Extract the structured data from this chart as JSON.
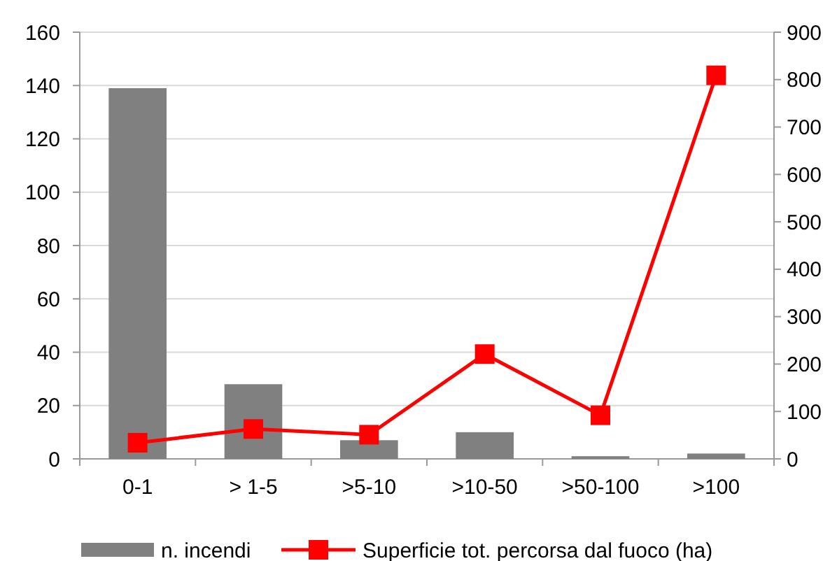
{
  "chart_data": {
    "type": "bar",
    "categories": [
      "0-1",
      "> 1-5",
      ">5-10",
      ">10-50",
      ">50-100",
      ">100"
    ],
    "series": [
      {
        "name": "n. incendi",
        "color": "#808080",
        "values": [
          139,
          28,
          7,
          10,
          1,
          2
        ]
      },
      {
        "name": "Superficie tot. percorsa dal fuoco (ha)",
        "color": "#ff0000",
        "type": "line",
        "axis": "y2",
        "marker": "square",
        "values": [
          34,
          63,
          51,
          221,
          92,
          809
        ]
      }
    ],
    "ylim": [
      0,
      160
    ],
    "yticks": [
      0,
      20,
      40,
      60,
      80,
      100,
      120,
      140,
      160
    ],
    "y2lim": [
      0,
      900
    ],
    "y2ticks": [
      0,
      100,
      200,
      300,
      400,
      500,
      600,
      700,
      800,
      900
    ],
    "grid": "y",
    "legend": "bottom"
  }
}
